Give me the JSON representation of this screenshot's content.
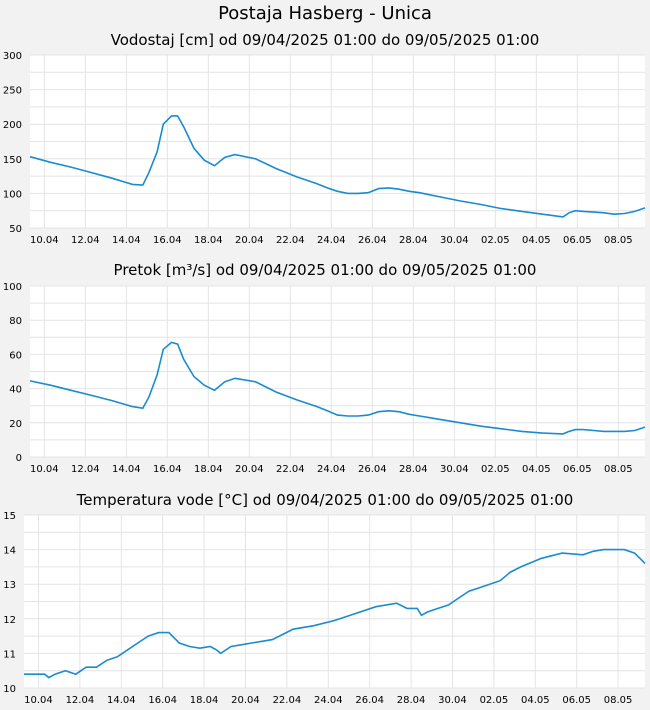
{
  "page": {
    "title": "Postaja Hasberg - Unica"
  },
  "colors": {
    "series": "#1a8bd0",
    "background": "#f2f2f2",
    "plot": "#ffffff",
    "grid": "#e4e4e4"
  },
  "chart_data": [
    {
      "type": "line",
      "title": "Vodostaj [cm] od 09/04/2025 01:00 do 09/05/2025 01:00",
      "xlabel": "",
      "ylabel": "",
      "xlim": [
        0,
        30
      ],
      "ylim": [
        50,
        300
      ],
      "yticks": [
        50,
        100,
        150,
        200,
        250,
        300
      ],
      "xtick_labels": [
        "10.04",
        "12.04",
        "14.04",
        "16.04",
        "18.04",
        "20.04",
        "22.04",
        "24.04",
        "26.04",
        "28.04",
        "30.04",
        "02.05",
        "04.05",
        "06.05",
        "08.05"
      ],
      "grid": true,
      "x": [
        0,
        1,
        2,
        3,
        4,
        5,
        5.5,
        5.8,
        6.2,
        6.5,
        6.9,
        7.2,
        7.5,
        8,
        8.5,
        9,
        9.5,
        10,
        11,
        12,
        13,
        14,
        14.5,
        15,
        15.5,
        16,
        16.5,
        17,
        17.5,
        18,
        18.5,
        19,
        19.5,
        20,
        21,
        22,
        23,
        24,
        25,
        26,
        26.3,
        26.6,
        27,
        27.5,
        28,
        28.5,
        29,
        29.5,
        30
      ],
      "values": [
        153,
        145,
        138,
        130,
        122,
        113,
        112,
        130,
        160,
        200,
        212,
        212,
        196,
        165,
        148,
        140,
        152,
        156,
        150,
        136,
        124,
        114,
        108,
        103,
        100,
        100,
        101,
        107,
        108,
        106,
        103,
        101,
        98,
        95,
        89,
        84,
        78,
        74,
        70,
        66,
        72,
        75,
        74,
        73,
        72,
        70,
        71,
        74,
        79
      ]
    },
    {
      "type": "line",
      "title": "Pretok [m³/s] od 09/04/2025 01:00 do 09/05/2025 01:00",
      "xlabel": "",
      "ylabel": "",
      "xlim": [
        0,
        30
      ],
      "ylim": [
        0,
        100
      ],
      "yticks": [
        0,
        20,
        40,
        60,
        80,
        100
      ],
      "xtick_labels": [
        "10.04",
        "12.04",
        "14.04",
        "16.04",
        "18.04",
        "20.04",
        "22.04",
        "24.04",
        "26.04",
        "28.04",
        "30.04",
        "02.05",
        "04.05",
        "06.05",
        "08.05"
      ],
      "grid": true,
      "x": [
        0,
        1,
        2,
        3,
        4,
        5,
        5.5,
        5.8,
        6.2,
        6.5,
        6.9,
        7.2,
        7.5,
        8,
        8.5,
        9,
        9.5,
        10,
        11,
        12,
        13,
        14,
        14.5,
        15,
        15.5,
        16,
        16.5,
        17,
        17.5,
        18,
        18.5,
        19,
        19.5,
        20,
        21,
        22,
        23,
        24,
        25,
        26,
        26.3,
        26.6,
        27,
        27.5,
        28,
        28.5,
        29,
        29.5,
        30
      ],
      "values": [
        44.5,
        42,
        39,
        36,
        33,
        29.5,
        28.5,
        35,
        48,
        63,
        67,
        66,
        57,
        47,
        42,
        39,
        44,
        46,
        44,
        38,
        33.5,
        29.5,
        27,
        24.5,
        24,
        24,
        24.5,
        26.5,
        27,
        26.5,
        25,
        24,
        23,
        22,
        20,
        18,
        16.5,
        15,
        14,
        13.5,
        15,
        16,
        16,
        15.5,
        15,
        15,
        15,
        15.5,
        17.5
      ]
    },
    {
      "type": "line",
      "title": "Temperatura vode [°C] od 09/04/2025 01:00 do 09/05/2025 01:00",
      "xlabel": "",
      "ylabel": "",
      "xlim": [
        0,
        30
      ],
      "ylim": [
        10,
        15
      ],
      "yticks": [
        10,
        11,
        12,
        13,
        14,
        15
      ],
      "xtick_labels": [
        "10.04",
        "12.04",
        "14.04",
        "16.04",
        "18.04",
        "20.04",
        "22.04",
        "24.04",
        "26.04",
        "28.04",
        "30.04",
        "02.05",
        "04.05",
        "06.05",
        "08.05"
      ],
      "grid": true,
      "x": [
        0,
        0.5,
        1,
        1.2,
        1.5,
        2,
        2.5,
        3,
        3.5,
        4,
        4.5,
        5,
        5.5,
        6,
        6.5,
        7,
        7.5,
        8,
        8.5,
        9,
        9.3,
        9.5,
        10,
        10.5,
        11,
        11.5,
        12,
        12.5,
        13,
        14,
        15,
        16,
        17,
        18,
        18.5,
        19,
        19.2,
        19.5,
        20,
        20.5,
        21,
        21.5,
        22,
        23,
        23.5,
        24,
        25,
        26,
        27,
        27.5,
        28,
        28.5,
        29,
        29.5,
        30
      ],
      "values": [
        10.4,
        10.4,
        10.4,
        10.3,
        10.4,
        10.5,
        10.4,
        10.6,
        10.6,
        10.8,
        10.9,
        11.1,
        11.3,
        11.5,
        11.6,
        11.6,
        11.3,
        11.2,
        11.15,
        11.2,
        11.1,
        11.0,
        11.2,
        11.25,
        11.3,
        11.35,
        11.4,
        11.55,
        11.7,
        11.8,
        11.95,
        12.15,
        12.35,
        12.45,
        12.3,
        12.3,
        12.1,
        12.2,
        12.3,
        12.4,
        12.6,
        12.8,
        12.9,
        13.1,
        13.35,
        13.5,
        13.75,
        13.9,
        13.85,
        13.95,
        14.0,
        14.0,
        14.0,
        13.9,
        13.6
      ]
    }
  ]
}
